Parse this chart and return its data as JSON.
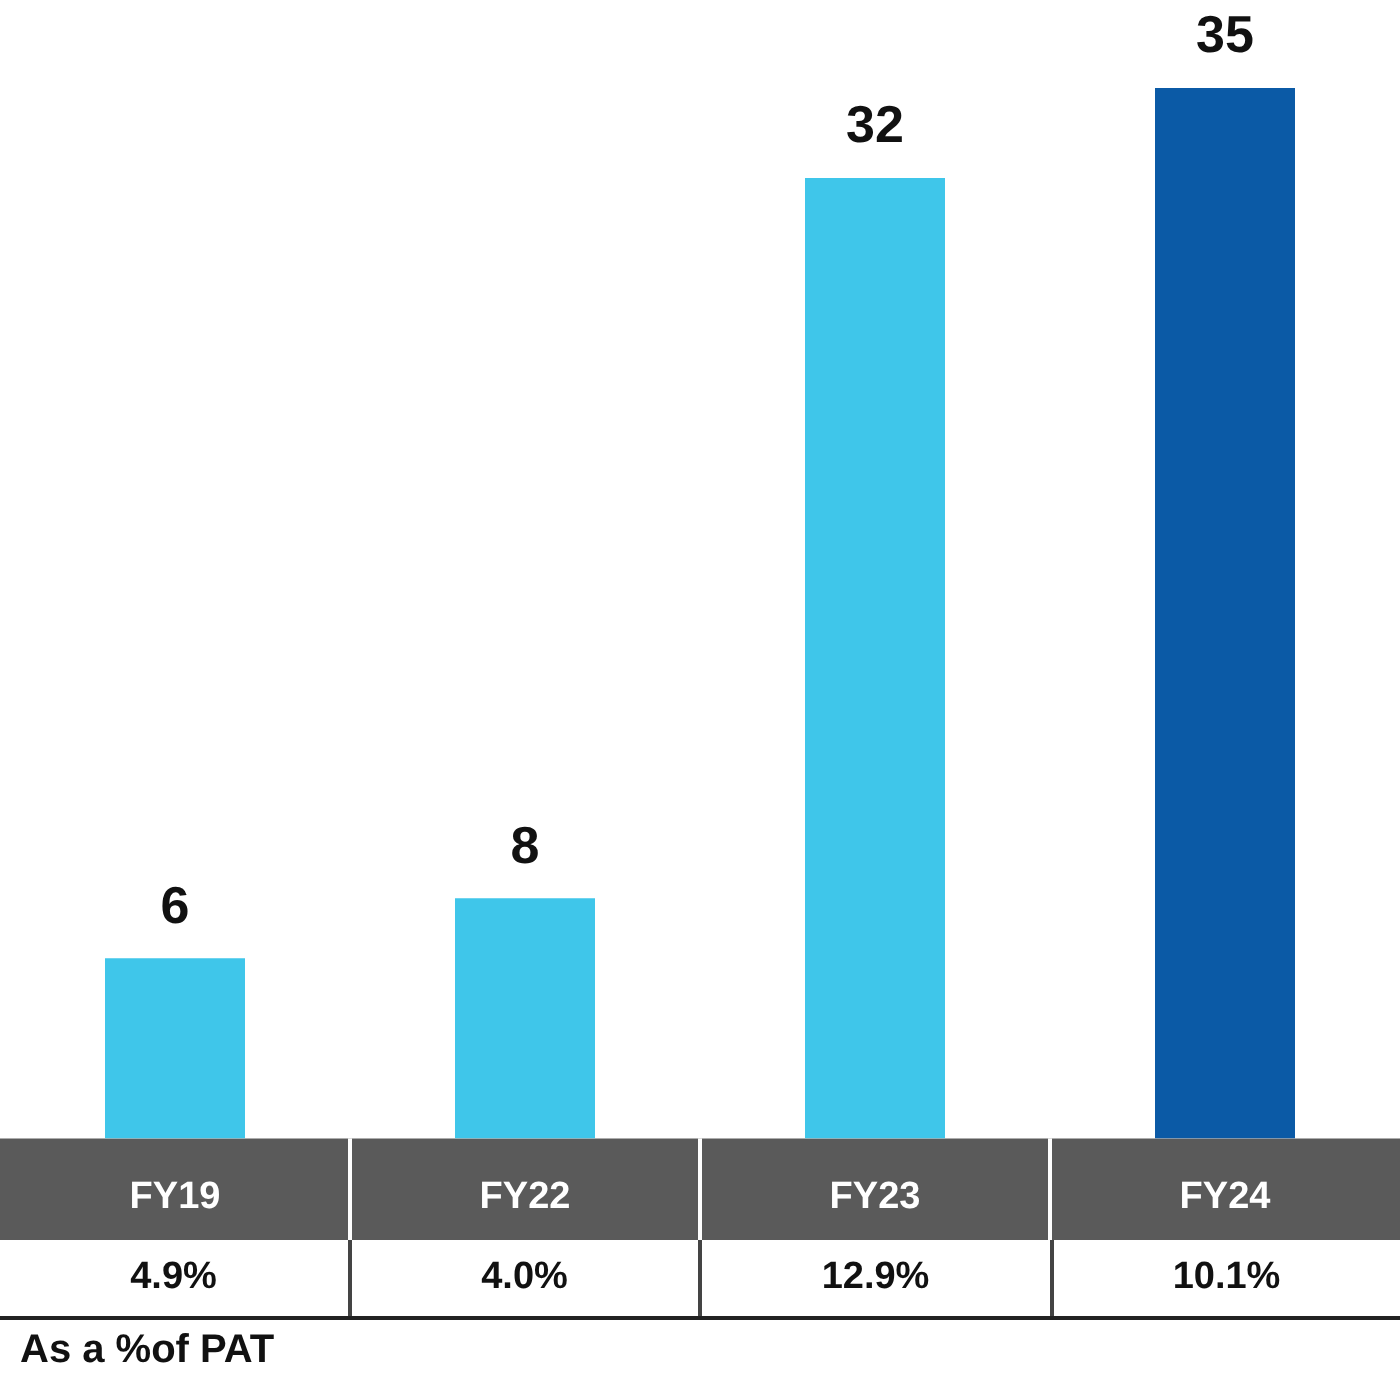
{
  "chart_data": {
    "type": "bar",
    "categories": [
      "FY19",
      "FY22",
      "FY23",
      "FY24"
    ],
    "values": [
      6,
      8,
      32,
      35
    ],
    "colors": [
      "#3fc6ea",
      "#3fc6ea",
      "#3fc6ea",
      "#0b5aa6"
    ],
    "data_labels": true,
    "annotations": [
      "4.9%",
      "4.0%",
      "12.9%",
      "10.1%",
      "As a %of PAT"
    ]
  }
}
